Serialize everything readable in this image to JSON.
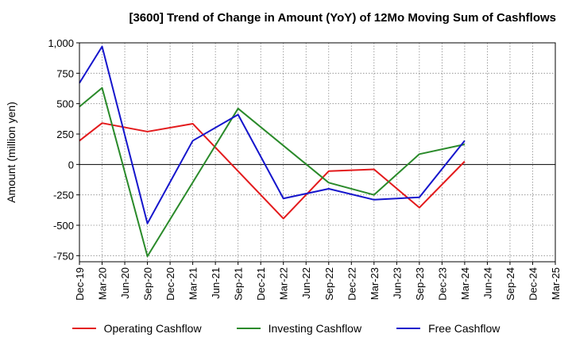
{
  "chart_data": {
    "type": "line",
    "title": "[3600]  Trend of Change in Amount (YoY) of 12Mo Moving Sum of Cashflows",
    "xlabel": "",
    "ylabel": "Amount (million yen)",
    "ylim": [
      -800,
      1000
    ],
    "yticks": [
      -750,
      -500,
      -250,
      0,
      250,
      500,
      750,
      1000
    ],
    "ytick_labels": [
      "-750",
      "-500",
      "-250",
      "0",
      "250",
      "500",
      "750",
      "1,000"
    ],
    "categories": [
      "Dec-19",
      "Mar-20",
      "Jun-20",
      "Sep-20",
      "Dec-20",
      "Mar-21",
      "Jun-21",
      "Sep-21",
      "Dec-21",
      "Mar-22",
      "Jun-22",
      "Sep-22",
      "Dec-22",
      "Mar-23",
      "Jun-23",
      "Sep-23",
      "Dec-23",
      "Mar-24",
      "Jun-24",
      "Sep-24",
      "Dec-24",
      "Mar-25"
    ],
    "grid": true,
    "legend_position": "bottom",
    "series": [
      {
        "name": "Operating Cashflow",
        "color": "#e31a1c",
        "values": [
          195,
          340,
          null,
          270,
          null,
          335,
          null,
          null,
          null,
          -445,
          null,
          -55,
          null,
          -40,
          null,
          -355,
          null,
          25,
          null,
          null,
          null,
          null
        ]
      },
      {
        "name": "Investing Cashflow",
        "color": "#2a8a2a",
        "values": [
          475,
          630,
          null,
          -755,
          null,
          null,
          null,
          460,
          null,
          null,
          null,
          -150,
          null,
          -250,
          null,
          85,
          null,
          165,
          null,
          null,
          null,
          null
        ]
      },
      {
        "name": "Free Cashflow",
        "color": "#1515cc",
        "values": [
          670,
          970,
          null,
          -485,
          null,
          195,
          null,
          410,
          null,
          -280,
          null,
          -200,
          null,
          -290,
          null,
          -270,
          null,
          195,
          null,
          null,
          null,
          null
        ]
      }
    ]
  }
}
